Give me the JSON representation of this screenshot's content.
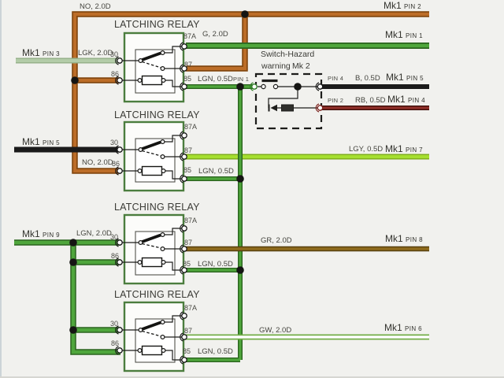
{
  "texts": {
    "relay_title": "LATCHING RELAY",
    "mk1": "Mk1",
    "switch_title_line1": "Switch-Hazard",
    "switch_title_line2": "warning",
    "switch_title_line3": "Mk 2",
    "terminal_30": "30",
    "terminal_86": "86",
    "terminal_87a": "87A",
    "terminal_87": "87",
    "terminal_85": "85",
    "wire_no": "NO, 2.0D",
    "wire_lgk": "LGK, 2.0D",
    "wire_g": "G, 2.0D",
    "wire_lgn05": "LGN, 0.5D",
    "wire_lgn20": "LGN, 2.0D",
    "wire_lgy": "LGY, 0.5D",
    "wire_gr": "GR, 2.0D",
    "wire_gw": "GW, 2.0D",
    "wire_b": "B, 0.5D",
    "wire_rb": "RB, 0.5D",
    "pin_1": "PIN 1",
    "pin_2": "PIN 2",
    "pin_3": "PIN 3",
    "pin_4": "PIN 4",
    "pin_5": "PIN 5",
    "pin_6": "PIN 6",
    "pin_7": "PIN 7",
    "pin_8": "PIN 8",
    "pin_9": "PIN 9"
  },
  "colors": {
    "background": "#f1f1ee",
    "text": "#45453f",
    "relay_green": "#4b7d3e",
    "orange_core": "#bc6d28",
    "orange_edge": "#83470f",
    "green_core": "#4fa63c",
    "green_edge": "#2b641f",
    "pale_core": "#b3cca8",
    "pale_edge": "#93af87",
    "lgy_core": "#a5df30",
    "lgy_edge": "#7fae1c",
    "olive_core": "#8f6b1d",
    "olive_edge": "#57400e",
    "gw_core": "#ffffff",
    "gw_edge": "#72ad47",
    "rb_core": "#93302a",
    "rb_edge": "#420f0b",
    "black_wire": "#1b1b1b"
  }
}
